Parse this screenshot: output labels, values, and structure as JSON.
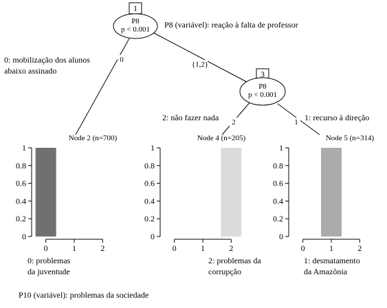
{
  "root": {
    "id": "1",
    "variable": "P8",
    "p": "p < 0.001",
    "annotation": "P8 (variável): reação à falta de professor"
  },
  "inner": {
    "id": "3",
    "variable": "P8",
    "p": "p < 0.001"
  },
  "edges": {
    "root_left": "0",
    "root_right": "{1,2}",
    "inner_left": "2",
    "inner_right": "1"
  },
  "edge_annotations": {
    "mobilizacao_line1": "0: mobilização dos alunos",
    "mobilizacao_line2": "abaixo assinado",
    "nao_fazer": "2: não fazer nada",
    "recurso": "1: recurso à direção"
  },
  "terminals": [
    {
      "title": "Node 2 (n=700)",
      "categories": [
        "0",
        "1",
        "2"
      ],
      "values": [
        1,
        0,
        0
      ],
      "highlight": 0,
      "color": "#707070",
      "yticks": [
        "0",
        "0.2",
        "0.4",
        "0.6",
        "0.8",
        "1"
      ],
      "caption_line1": "0: problemas",
      "caption_line2": "da juventude"
    },
    {
      "title": "Node 4 (n=205)",
      "categories": [
        "0",
        "1",
        "2"
      ],
      "values": [
        0,
        0,
        1
      ],
      "highlight": 2,
      "color": "#dcdcdc",
      "yticks": [
        "0",
        "0.2",
        "0.4",
        "0.6",
        "0.8",
        "1"
      ],
      "caption_line1": "2: problemas da",
      "caption_line2": "corrupção"
    },
    {
      "title": "Node 5 (n=314)",
      "categories": [
        "0",
        "1",
        "2"
      ],
      "values": [
        0,
        1,
        0
      ],
      "highlight": 1,
      "color": "#ababab",
      "yticks": [
        "0",
        "0.2",
        "0.4",
        "0.6",
        "0.8",
        "1"
      ],
      "caption_line1": "1: desmatamento",
      "caption_line2": "da Amazônia"
    }
  ],
  "footer": "P10 (variável): problemas da sociedade"
}
